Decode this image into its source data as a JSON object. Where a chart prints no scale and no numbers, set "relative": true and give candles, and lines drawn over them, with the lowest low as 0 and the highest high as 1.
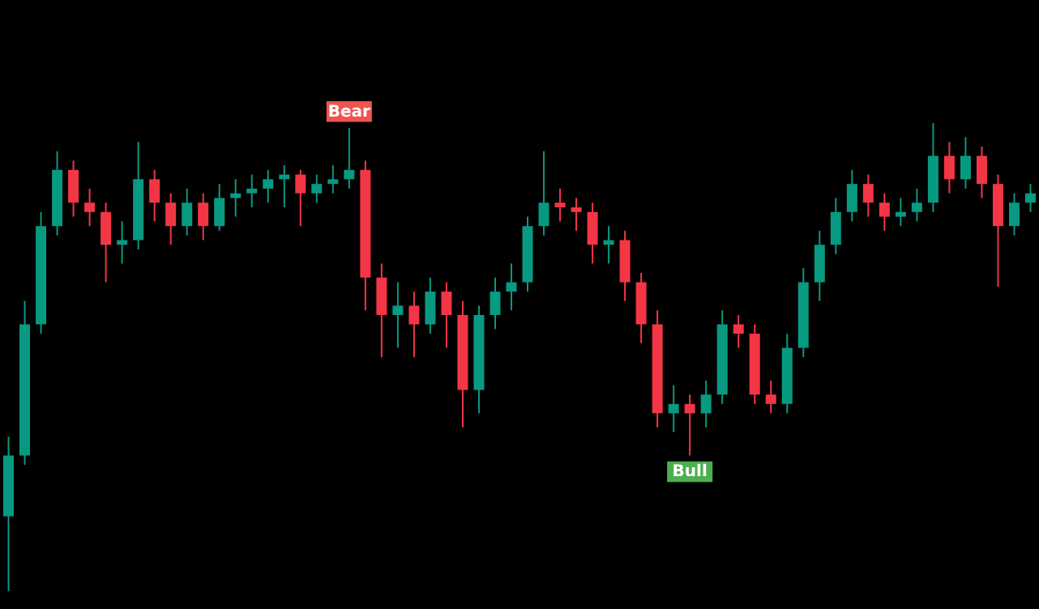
{
  "chart_data": {
    "type": "candlestick",
    "relative": true,
    "annotations": [
      "Bear",
      "Bull"
    ],
    "categories": [
      null,
      null,
      null,
      null,
      null,
      null,
      null,
      null,
      null,
      null,
      null,
      null,
      null,
      null,
      null,
      null,
      null,
      null,
      null,
      null,
      null,
      null,
      null,
      null,
      null,
      null,
      null,
      null,
      null,
      null,
      null,
      null,
      null,
      null,
      null,
      null,
      null,
      null,
      null,
      null,
      null,
      null,
      null,
      null,
      null,
      null,
      null,
      null,
      null,
      null,
      null,
      null,
      null,
      null,
      null,
      null,
      null,
      null,
      null,
      null,
      null,
      null,
      null,
      null
    ],
    "ohlc": [
      [
        0.16,
        0.33,
        0,
        0.29
      ],
      [
        0.29,
        0.62,
        0.27,
        0.57
      ],
      [
        0.57,
        0.81,
        0.55,
        0.78
      ],
      [
        0.78,
        0.94,
        0.76,
        0.9
      ],
      [
        0.9,
        0.92,
        0.8,
        0.83
      ],
      [
        0.83,
        0.86,
        0.78,
        0.81
      ],
      [
        0.81,
        0.83,
        0.66,
        0.74
      ],
      [
        0.74,
        0.79,
        0.7,
        0.75
      ],
      [
        0.75,
        0.96,
        0.73,
        0.88
      ],
      [
        0.88,
        0.9,
        0.79,
        0.83
      ],
      [
        0.83,
        0.85,
        0.74,
        0.78
      ],
      [
        0.78,
        0.86,
        0.76,
        0.83
      ],
      [
        0.83,
        0.85,
        0.75,
        0.78
      ],
      [
        0.78,
        0.87,
        0.77,
        0.84
      ],
      [
        0.84,
        0.88,
        0.8,
        0.85
      ],
      [
        0.85,
        0.89,
        0.82,
        0.86
      ],
      [
        0.86,
        0.9,
        0.83,
        0.88
      ],
      [
        0.88,
        0.91,
        0.82,
        0.89
      ],
      [
        0.89,
        0.9,
        0.78,
        0.85
      ],
      [
        0.85,
        0.89,
        0.83,
        0.87
      ],
      [
        0.87,
        0.91,
        0.85,
        0.88
      ],
      [
        0.88,
        0.99,
        0.86,
        0.9
      ],
      [
        0.9,
        0.92,
        0.6,
        0.67
      ],
      [
        0.67,
        0.7,
        0.5,
        0.59
      ],
      [
        0.59,
        0.66,
        0.52,
        0.61
      ],
      [
        0.61,
        0.64,
        0.5,
        0.57
      ],
      [
        0.57,
        0.67,
        0.55,
        0.64
      ],
      [
        0.64,
        0.66,
        0.52,
        0.59
      ],
      [
        0.59,
        0.62,
        0.35,
        0.43
      ],
      [
        0.43,
        0.61,
        0.38,
        0.59
      ],
      [
        0.59,
        0.67,
        0.56,
        0.64
      ],
      [
        0.64,
        0.7,
        0.6,
        0.66
      ],
      [
        0.66,
        0.8,
        0.64,
        0.78
      ],
      [
        0.78,
        0.94,
        0.76,
        0.83
      ],
      [
        0.83,
        0.86,
        0.79,
        0.82
      ],
      [
        0.82,
        0.84,
        0.77,
        0.81
      ],
      [
        0.81,
        0.83,
        0.7,
        0.74
      ],
      [
        0.74,
        0.78,
        0.7,
        0.75
      ],
      [
        0.75,
        0.77,
        0.62,
        0.66
      ],
      [
        0.66,
        0.68,
        0.53,
        0.57
      ],
      [
        0.57,
        0.6,
        0.35,
        0.38
      ],
      [
        0.38,
        0.44,
        0.34,
        0.4
      ],
      [
        0.4,
        0.42,
        0.29,
        0.38
      ],
      [
        0.38,
        0.45,
        0.35,
        0.42
      ],
      [
        0.42,
        0.6,
        0.4,
        0.57
      ],
      [
        0.57,
        0.59,
        0.52,
        0.55
      ],
      [
        0.55,
        0.57,
        0.4,
        0.42
      ],
      [
        0.42,
        0.45,
        0.38,
        0.4
      ],
      [
        0.4,
        0.55,
        0.38,
        0.52
      ],
      [
        0.52,
        0.69,
        0.5,
        0.66
      ],
      [
        0.66,
        0.77,
        0.62,
        0.74
      ],
      [
        0.74,
        0.84,
        0.72,
        0.81
      ],
      [
        0.81,
        0.9,
        0.79,
        0.87
      ],
      [
        0.87,
        0.89,
        0.8,
        0.83
      ],
      [
        0.83,
        0.85,
        0.77,
        0.8
      ],
      [
        0.8,
        0.84,
        0.78,
        0.81
      ],
      [
        0.81,
        0.86,
        0.79,
        0.83
      ],
      [
        0.83,
        1,
        0.81,
        0.93
      ],
      [
        0.93,
        0.96,
        0.85,
        0.88
      ],
      [
        0.88,
        0.97,
        0.86,
        0.93
      ],
      [
        0.93,
        0.95,
        0.84,
        0.87
      ],
      [
        0.87,
        0.89,
        0.65,
        0.78
      ],
      [
        0.78,
        0.85,
        0.76,
        0.83
      ],
      [
        0.83,
        0.87,
        0.81,
        0.85
      ]
    ],
    "colors": [
      "#089981",
      "#089981",
      "#089981",
      "#089981",
      "#f23645",
      "#f23645",
      "#f23645",
      "#089981",
      "#089981",
      "#f23645",
      "#f23645",
      "#089981",
      "#f23645",
      "#089981",
      "#089981",
      "#089981",
      "#089981",
      "#089981",
      "#f23645",
      "#089981",
      "#089981",
      "#089981",
      "#f23645",
      "#f23645",
      "#089981",
      "#f23645",
      "#089981",
      "#f23645",
      "#f23645",
      "#089981",
      "#089981",
      "#089981",
      "#089981",
      "#089981",
      "#f23645",
      "#f23645",
      "#f23645",
      "#089981",
      "#f23645",
      "#f23645",
      "#f23645",
      "#089981",
      "#f23645",
      "#089981",
      "#089981",
      "#f23645",
      "#f23645",
      "#f23645",
      "#089981",
      "#089981",
      "#089981",
      "#089981",
      "#089981",
      "#f23645",
      "#f23645",
      "#089981",
      "#089981",
      "#089981",
      "#f23645",
      "#089981",
      "#f23645",
      "#f23645",
      "#089981",
      "#089981"
    ]
  }
}
